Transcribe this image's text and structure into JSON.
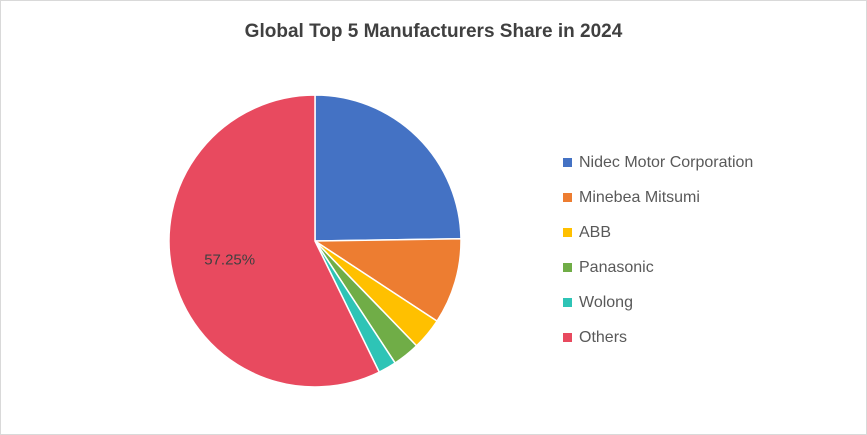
{
  "chart_data": {
    "type": "pie",
    "title": "Global Top 5 Manufacturers Share in 2024",
    "categories": [
      "Nidec Motor Corporation",
      "Minebea Mitsumi",
      "ABB",
      "Panasonic",
      "Wolong",
      "Others"
    ],
    "values": [
      24.75,
      9.5,
      3.5,
      3,
      2,
      57.25
    ],
    "unit": "%",
    "colors": [
      "#4472C4",
      "#ED7D31",
      "#FFC000",
      "#70AD47",
      "#2EC4B6",
      "#E84A5F"
    ],
    "data_labels": [
      {
        "index": 5,
        "text": "57.25%"
      }
    ],
    "legend_position": "right",
    "start_angle_deg": 0,
    "direction": "clockwise"
  }
}
